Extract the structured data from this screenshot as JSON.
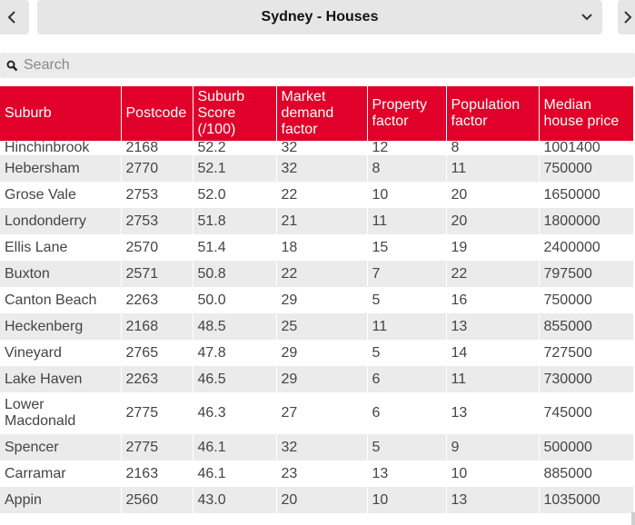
{
  "header": {
    "selected_option": "Sydney - Houses",
    "prev_icon": "chevron-left-icon",
    "next_icon": "chevron-right-icon",
    "caret_icon": "chevron-down-icon"
  },
  "search": {
    "placeholder": "Search",
    "value": ""
  },
  "colors": {
    "header_bg": "#e0002a",
    "row_alt": "#ebebeb",
    "control_bg": "#e6e6e6"
  },
  "table": {
    "columns": [
      "Suburb",
      "Postcode",
      "Suburb Score (/100)",
      "Market demand factor",
      "Property factor",
      "Population factor",
      "Median house price"
    ],
    "rows": [
      [
        "Hinchinbrook",
        "2168",
        "52.2",
        "32",
        "12",
        "8",
        "1001400"
      ],
      [
        "Hebersham",
        "2770",
        "52.1",
        "32",
        "8",
        "11",
        "750000"
      ],
      [
        "Grose Vale",
        "2753",
        "52.0",
        "22",
        "10",
        "20",
        "1650000"
      ],
      [
        "Londonderry",
        "2753",
        "51.8",
        "21",
        "11",
        "20",
        "1800000"
      ],
      [
        "Ellis Lane",
        "2570",
        "51.4",
        "18",
        "15",
        "19",
        "2400000"
      ],
      [
        "Buxton",
        "2571",
        "50.8",
        "22",
        "7",
        "22",
        "797500"
      ],
      [
        "Canton Beach",
        "2263",
        "50.0",
        "29",
        "5",
        "16",
        "750000"
      ],
      [
        "Heckenberg",
        "2168",
        "48.5",
        "25",
        "11",
        "13",
        "855000"
      ],
      [
        "Vineyard",
        "2765",
        "47.8",
        "29",
        "5",
        "14",
        "727500"
      ],
      [
        "Lake Haven",
        "2263",
        "46.5",
        "29",
        "6",
        "11",
        "730000"
      ],
      [
        "Lower Macdonald",
        "2775",
        "46.3",
        "27",
        "6",
        "13",
        "745000"
      ],
      [
        "Spencer",
        "2775",
        "46.1",
        "32",
        "5",
        "9",
        "500000"
      ],
      [
        "Carramar",
        "2163",
        "46.1",
        "23",
        "13",
        "10",
        "885000"
      ],
      [
        "Appin",
        "2560",
        "43.0",
        "20",
        "10",
        "13",
        "1035000"
      ]
    ]
  }
}
